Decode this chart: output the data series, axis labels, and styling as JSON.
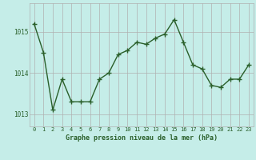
{
  "x": [
    0,
    1,
    2,
    3,
    4,
    5,
    6,
    7,
    8,
    9,
    10,
    11,
    12,
    13,
    14,
    15,
    16,
    17,
    18,
    19,
    20,
    21,
    22,
    23
  ],
  "y": [
    1015.2,
    1014.5,
    1013.1,
    1013.85,
    1013.3,
    1013.3,
    1013.3,
    1013.85,
    1014.0,
    1014.45,
    1014.55,
    1014.75,
    1014.7,
    1014.85,
    1014.95,
    1015.3,
    1014.75,
    1014.2,
    1014.1,
    1013.7,
    1013.65,
    1013.85,
    1013.85,
    1014.2
  ],
  "line_color": "#2a5f2a",
  "marker": "+",
  "bg_color": "#c5ede8",
  "grid_color": "#b0b0b0",
  "xlabel": "Graphe pression niveau de la mer (hPa)",
  "xlabel_color": "#2a5f2a",
  "tick_color": "#2a5f2a",
  "ylim": [
    1012.7,
    1015.7
  ],
  "yticks": [
    1013,
    1014,
    1015
  ],
  "xlim": [
    -0.5,
    23.5
  ],
  "figwidth": 3.2,
  "figheight": 2.0,
  "dpi": 100
}
